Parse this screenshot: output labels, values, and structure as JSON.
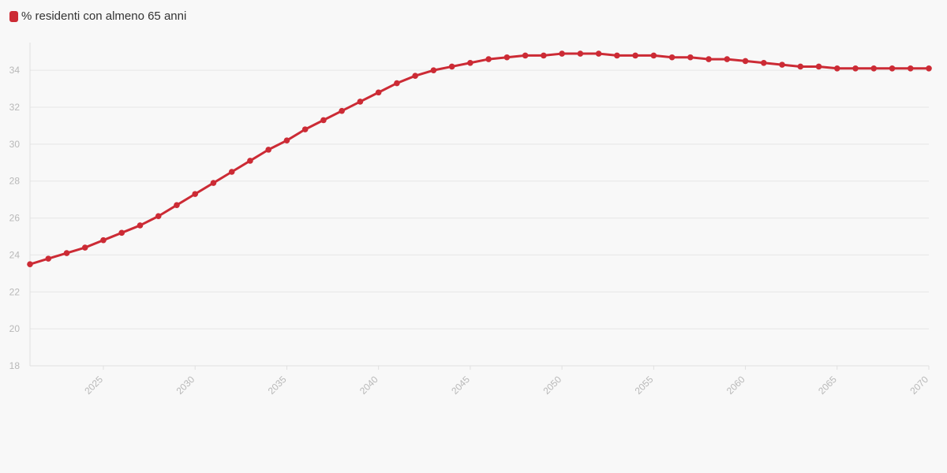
{
  "chart_data": {
    "type": "line",
    "legend": {
      "position": "top-left"
    },
    "x": [
      2021,
      2022,
      2023,
      2024,
      2025,
      2026,
      2027,
      2028,
      2029,
      2030,
      2031,
      2032,
      2033,
      2034,
      2035,
      2036,
      2037,
      2038,
      2039,
      2040,
      2041,
      2042,
      2043,
      2044,
      2045,
      2046,
      2047,
      2048,
      2049,
      2050,
      2051,
      2052,
      2053,
      2054,
      2055,
      2056,
      2057,
      2058,
      2059,
      2060,
      2061,
      2062,
      2063,
      2064,
      2065,
      2066,
      2067,
      2068,
      2069,
      2070
    ],
    "series": [
      {
        "name": "% residenti con almeno 65 anni",
        "color": "#cc2b35",
        "values": [
          23.5,
          23.8,
          24.1,
          24.4,
          24.8,
          25.2,
          25.6,
          26.1,
          26.7,
          27.3,
          27.9,
          28.5,
          29.1,
          29.7,
          30.2,
          30.8,
          31.3,
          31.8,
          32.3,
          32.8,
          33.3,
          33.7,
          34.0,
          34.2,
          34.4,
          34.6,
          34.7,
          34.8,
          34.8,
          34.9,
          34.9,
          34.9,
          34.8,
          34.8,
          34.8,
          34.7,
          34.7,
          34.6,
          34.6,
          34.5,
          34.4,
          34.3,
          34.2,
          34.2,
          34.1,
          34.1,
          34.1,
          34.1,
          34.1,
          34.1
        ]
      }
    ],
    "xlim": [
      2021,
      2070
    ],
    "ylim": [
      18,
      35.5
    ],
    "yticks": [
      18,
      20,
      22,
      24,
      26,
      28,
      30,
      32,
      34
    ],
    "xticks": [
      2025,
      2030,
      2035,
      2040,
      2045,
      2050,
      2055,
      2060,
      2065,
      2070
    ],
    "grid": true,
    "title": "",
    "xlabel": "",
    "ylabel": ""
  }
}
